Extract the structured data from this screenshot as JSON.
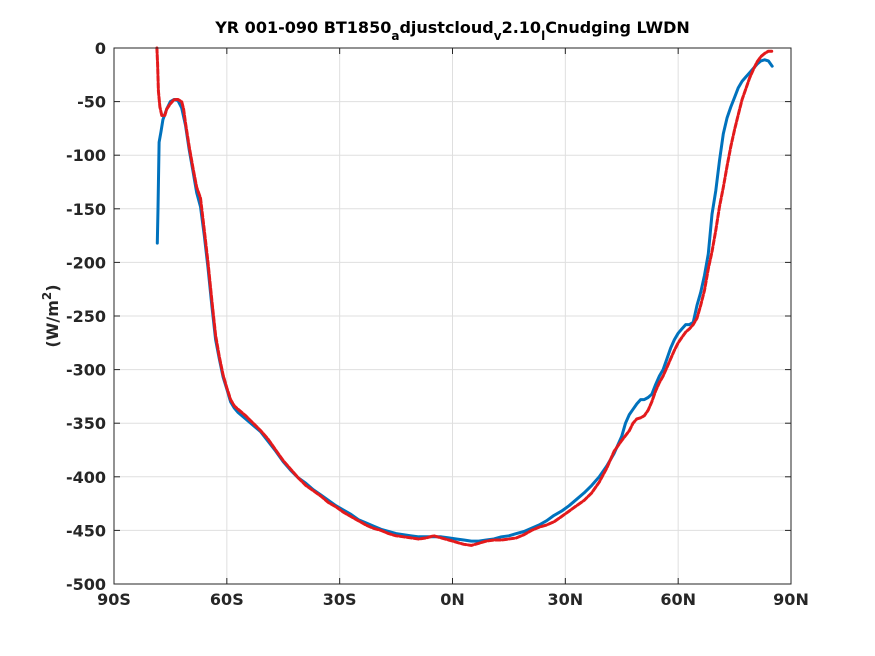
{
  "chart_data": {
    "type": "line",
    "title": "YR 001-090 BT1850_adjustcloud_v2.10_lCnudging LWDN",
    "title_parts": [
      {
        "text": "YR 001-090 BT1850",
        "sub": false
      },
      {
        "text": "a",
        "sub": true
      },
      {
        "text": "djustcloud",
        "sub": false
      },
      {
        "text": "v",
        "sub": true
      },
      {
        "text": "2.10",
        "sub": false
      },
      {
        "text": "l",
        "sub": true
      },
      {
        "text": "Cnudging LWDN",
        "sub": false
      }
    ],
    "xlabel": "",
    "ylabel": "(W/m2)",
    "ylabel_parts": {
      "base": "(W/m",
      "sup": "2",
      "end": ")"
    },
    "xlim": [
      -90,
      90
    ],
    "ylim": [
      -500,
      0
    ],
    "grid": true,
    "x_ticks": [
      -90,
      -60,
      -30,
      0,
      30,
      60,
      90
    ],
    "x_tick_labels": [
      "90S",
      "60S",
      "30S",
      "0N",
      "30N",
      "60N",
      "90N"
    ],
    "y_ticks": [
      0,
      -50,
      -100,
      -150,
      -200,
      -250,
      -300,
      -350,
      -400,
      -450,
      -500
    ],
    "y_tick_labels": [
      "0",
      "-50",
      "-100",
      "-150",
      "-200",
      "-250",
      "-300",
      "-350",
      "-400",
      "-450",
      "-500"
    ],
    "series": [
      {
        "color": "#0072bd",
        "style": "solid",
        "points": [
          [
            -78.5,
            -182
          ],
          [
            -78.3,
            -150
          ],
          [
            -78,
            -88
          ],
          [
            -77.5,
            -78
          ],
          [
            -77,
            -67
          ],
          [
            -76,
            -57
          ],
          [
            -75,
            -50
          ],
          [
            -74,
            -48
          ],
          [
            -73,
            -49
          ],
          [
            -72,
            -56
          ],
          [
            -71,
            -72
          ],
          [
            -70,
            -95
          ],
          [
            -69,
            -115
          ],
          [
            -68,
            -135
          ],
          [
            -67,
            -148
          ],
          [
            -66,
            -175
          ],
          [
            -65,
            -205
          ],
          [
            -64,
            -240
          ],
          [
            -63,
            -272
          ],
          [
            -62,
            -290
          ],
          [
            -61,
            -307
          ],
          [
            -60,
            -318
          ],
          [
            -59,
            -330
          ],
          [
            -58,
            -336
          ],
          [
            -57,
            -340
          ],
          [
            -55,
            -346
          ],
          [
            -53,
            -352
          ],
          [
            -51,
            -358
          ],
          [
            -49,
            -367
          ],
          [
            -47,
            -376
          ],
          [
            -45,
            -386
          ],
          [
            -43,
            -394
          ],
          [
            -41,
            -401
          ],
          [
            -39,
            -406
          ],
          [
            -37,
            -412
          ],
          [
            -35,
            -417
          ],
          [
            -33,
            -422
          ],
          [
            -31,
            -427
          ],
          [
            -29,
            -431
          ],
          [
            -27,
            -435
          ],
          [
            -25,
            -440
          ],
          [
            -23,
            -443
          ],
          [
            -21,
            -446
          ],
          [
            -19,
            -449
          ],
          [
            -17,
            -451
          ],
          [
            -15,
            -453
          ],
          [
            -13,
            -454
          ],
          [
            -11,
            -455
          ],
          [
            -9,
            -456
          ],
          [
            -7,
            -456
          ],
          [
            -5,
            -456
          ],
          [
            -3,
            -456
          ],
          [
            -1,
            -457
          ],
          [
            1,
            -458
          ],
          [
            3,
            -459
          ],
          [
            5,
            -460
          ],
          [
            7,
            -460
          ],
          [
            9,
            -459
          ],
          [
            11,
            -458
          ],
          [
            13,
            -456
          ],
          [
            15,
            -455
          ],
          [
            17,
            -453
          ],
          [
            19,
            -451
          ],
          [
            21,
            -448
          ],
          [
            23,
            -445
          ],
          [
            25,
            -441
          ],
          [
            27,
            -436
          ],
          [
            29,
            -432
          ],
          [
            31,
            -427
          ],
          [
            33,
            -421
          ],
          [
            35,
            -415
          ],
          [
            37,
            -408
          ],
          [
            39,
            -400
          ],
          [
            41,
            -390
          ],
          [
            43,
            -378
          ],
          [
            45,
            -362
          ],
          [
            46,
            -350
          ],
          [
            47,
            -342
          ],
          [
            48,
            -337
          ],
          [
            49,
            -332
          ],
          [
            50,
            -328
          ],
          [
            51,
            -328
          ],
          [
            52,
            -326
          ],
          [
            53,
            -323
          ],
          [
            54,
            -314
          ],
          [
            55,
            -306
          ],
          [
            56,
            -300
          ],
          [
            57,
            -290
          ],
          [
            58,
            -280
          ],
          [
            59,
            -272
          ],
          [
            60,
            -266
          ],
          [
            61,
            -262
          ],
          [
            62,
            -258
          ],
          [
            63,
            -258
          ],
          [
            64,
            -256
          ],
          [
            65,
            -240
          ],
          [
            66,
            -228
          ],
          [
            67,
            -212
          ],
          [
            68,
            -192
          ],
          [
            69,
            -155
          ],
          [
            70,
            -133
          ],
          [
            71,
            -105
          ],
          [
            72,
            -80
          ],
          [
            73,
            -65
          ],
          [
            74,
            -55
          ],
          [
            75,
            -46
          ],
          [
            76,
            -37
          ],
          [
            77,
            -31
          ],
          [
            78,
            -27
          ],
          [
            79,
            -23
          ],
          [
            80,
            -19
          ],
          [
            81,
            -15
          ],
          [
            82,
            -12
          ],
          [
            83,
            -11
          ],
          [
            84,
            -12
          ],
          [
            85,
            -17
          ]
        ]
      },
      {
        "color": "#e31a1c",
        "style": "dashed",
        "points": [
          [
            -78.6,
            0
          ],
          [
            -78.4,
            -15
          ],
          [
            -78.2,
            -40
          ],
          [
            -77.8,
            -55
          ],
          [
            -77.3,
            -63
          ],
          [
            -76.5,
            -63
          ],
          [
            -76,
            -57
          ],
          [
            -75,
            -52
          ],
          [
            -74,
            -48
          ],
          [
            -73,
            -48
          ],
          [
            -72,
            -50
          ],
          [
            -71.5,
            -57
          ],
          [
            -71,
            -70
          ],
          [
            -70,
            -92
          ],
          [
            -69,
            -112
          ],
          [
            -68,
            -130
          ],
          [
            -67,
            -140
          ],
          [
            -66,
            -170
          ],
          [
            -65,
            -200
          ],
          [
            -64,
            -235
          ],
          [
            -63,
            -268
          ],
          [
            -62,
            -288
          ],
          [
            -61,
            -305
          ],
          [
            -60,
            -317
          ],
          [
            -59,
            -328
          ],
          [
            -58,
            -334
          ],
          [
            -57,
            -337
          ],
          [
            -55,
            -343
          ],
          [
            -53,
            -350
          ],
          [
            -51,
            -357
          ],
          [
            -49,
            -365
          ],
          [
            -47,
            -375
          ],
          [
            -45,
            -385
          ],
          [
            -43,
            -393
          ],
          [
            -41,
            -401
          ],
          [
            -39,
            -408
          ],
          [
            -37,
            -413
          ],
          [
            -35,
            -418
          ],
          [
            -33,
            -424
          ],
          [
            -31,
            -428
          ],
          [
            -29,
            -433
          ],
          [
            -27,
            -437
          ],
          [
            -25,
            -441
          ],
          [
            -23,
            -445
          ],
          [
            -21,
            -448
          ],
          [
            -19,
            -450
          ],
          [
            -17,
            -453
          ],
          [
            -15,
            -455
          ],
          [
            -13,
            -456
          ],
          [
            -11,
            -457
          ],
          [
            -9,
            -458
          ],
          [
            -7,
            -457
          ],
          [
            -5,
            -455
          ],
          [
            -3,
            -457
          ],
          [
            -1,
            -459
          ],
          [
            1,
            -461
          ],
          [
            3,
            -463
          ],
          [
            5,
            -464
          ],
          [
            7,
            -462
          ],
          [
            9,
            -460
          ],
          [
            11,
            -459
          ],
          [
            13,
            -459
          ],
          [
            15,
            -458
          ],
          [
            17,
            -457
          ],
          [
            19,
            -454
          ],
          [
            21,
            -450
          ],
          [
            23,
            -447
          ],
          [
            25,
            -445
          ],
          [
            27,
            -442
          ],
          [
            29,
            -437
          ],
          [
            31,
            -432
          ],
          [
            33,
            -427
          ],
          [
            35,
            -422
          ],
          [
            37,
            -415
          ],
          [
            39,
            -405
          ],
          [
            41,
            -392
          ],
          [
            43,
            -376
          ],
          [
            45,
            -366
          ],
          [
            47,
            -357
          ],
          [
            48,
            -350
          ],
          [
            49,
            -346
          ],
          [
            50,
            -345
          ],
          [
            51,
            -343
          ],
          [
            52,
            -338
          ],
          [
            53,
            -330
          ],
          [
            54,
            -320
          ],
          [
            55,
            -312
          ],
          [
            56,
            -306
          ],
          [
            57,
            -298
          ],
          [
            58,
            -290
          ],
          [
            59,
            -282
          ],
          [
            60,
            -275
          ],
          [
            61,
            -270
          ],
          [
            62,
            -265
          ],
          [
            63,
            -262
          ],
          [
            64,
            -258
          ],
          [
            65,
            -252
          ],
          [
            66,
            -240
          ],
          [
            67,
            -226
          ],
          [
            68,
            -206
          ],
          [
            69,
            -190
          ],
          [
            70,
            -170
          ],
          [
            71,
            -148
          ],
          [
            72,
            -130
          ],
          [
            73,
            -110
          ],
          [
            74,
            -92
          ],
          [
            75,
            -76
          ],
          [
            76,
            -62
          ],
          [
            77,
            -48
          ],
          [
            78,
            -38
          ],
          [
            79,
            -28
          ],
          [
            80,
            -20
          ],
          [
            81,
            -13
          ],
          [
            82,
            -8
          ],
          [
            83,
            -5
          ],
          [
            84,
            -3
          ],
          [
            85,
            -3
          ]
        ]
      }
    ]
  }
}
